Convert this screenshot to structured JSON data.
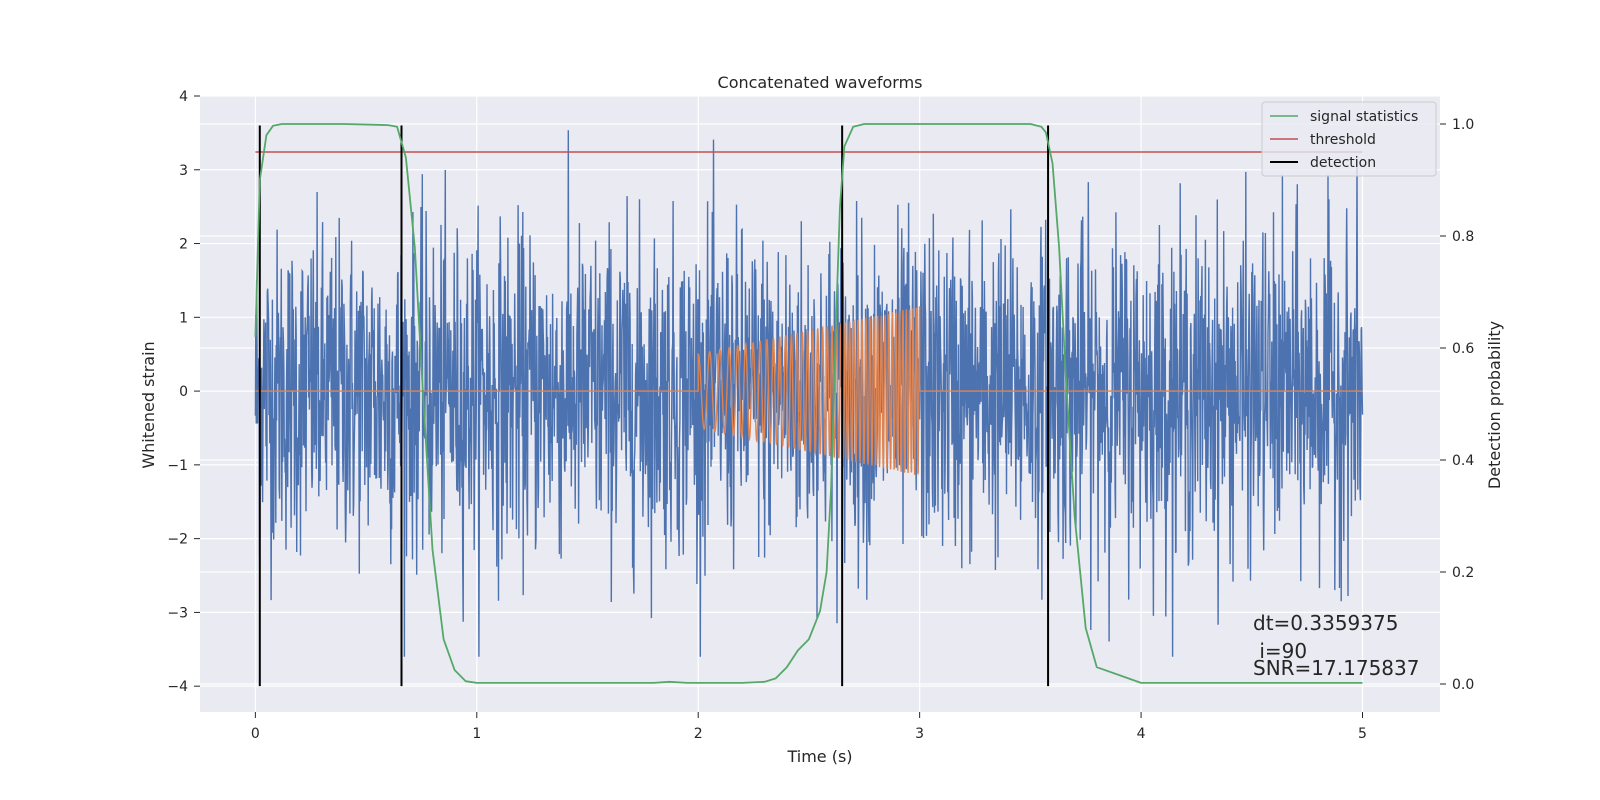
{
  "chart_data": {
    "type": "line",
    "title": "Concatenated waveforms",
    "xlabel": "Time (s)",
    "ylabel": "Whitened strain",
    "ylabel_right": "Detection probability",
    "xlim": [
      -0.25,
      5.35
    ],
    "ylim": [
      -4.35,
      4.0
    ],
    "ylim_right": [
      -0.05,
      1.05
    ],
    "x_ticks": [
      0,
      1,
      2,
      3,
      4,
      5
    ],
    "y_ticks": [
      -4,
      -3,
      -2,
      -1,
      0,
      1,
      2,
      3,
      4
    ],
    "y_ticks_right": [
      0.0,
      0.2,
      0.4,
      0.6,
      0.8,
      1.0
    ],
    "x_tick_labels": [
      "0",
      "1",
      "2",
      "3",
      "4",
      "5"
    ],
    "y_tick_labels": [
      "−4",
      "−3",
      "−2",
      "−1",
      "0",
      "1",
      "2",
      "3",
      "4"
    ],
    "y_tick_labels_right": [
      "0.0",
      "0.2",
      "0.4",
      "0.6",
      "0.8",
      "1.0"
    ],
    "grid": true,
    "legend_position": "top-right",
    "colors": {
      "strain": "#4c72b0",
      "injected_signal": "#dd8452",
      "signal_statistics": "#55a868",
      "threshold": "#c44e52",
      "detection": "#000000",
      "plot_background": "#eaeaf2",
      "grid": "#ffffff"
    },
    "series": [
      {
        "name": "signal statistics",
        "axis": "right",
        "x": [
          0.0,
          0.02,
          0.05,
          0.08,
          0.12,
          0.2,
          0.4,
          0.6,
          0.64,
          0.68,
          0.72,
          0.76,
          0.8,
          0.85,
          0.9,
          0.95,
          1.0,
          1.5,
          1.8,
          1.87,
          1.95,
          2.2,
          2.3,
          2.35,
          2.4,
          2.45,
          2.5,
          2.55,
          2.58,
          2.6,
          2.62,
          2.64,
          2.66,
          2.7,
          2.75,
          3.0,
          3.5,
          3.55,
          3.57,
          3.6,
          3.63,
          3.66,
          3.7,
          3.75,
          3.8,
          4.0,
          4.5,
          5.0
        ],
        "y": [
          0.62,
          0.9,
          0.98,
          0.997,
          1.0,
          1.0,
          1.0,
          0.998,
          0.995,
          0.94,
          0.78,
          0.5,
          0.24,
          0.08,
          0.025,
          0.005,
          0.002,
          0.002,
          0.002,
          0.004,
          0.002,
          0.002,
          0.004,
          0.01,
          0.03,
          0.06,
          0.08,
          0.13,
          0.2,
          0.35,
          0.62,
          0.85,
          0.96,
          0.995,
          1.0,
          1.0,
          1.0,
          0.995,
          0.985,
          0.93,
          0.78,
          0.55,
          0.3,
          0.1,
          0.03,
          0.002,
          0.002,
          0.002
        ]
      },
      {
        "name": "threshold",
        "axis": "right",
        "x": [
          0.0,
          5.0
        ],
        "y": [
          0.95,
          0.95
        ]
      },
      {
        "name": "detection",
        "axis": "left",
        "type": "vlines",
        "x": [
          0.02,
          0.66,
          2.65,
          3.58
        ],
        "y_range": [
          -4.0,
          3.6
        ]
      },
      {
        "name": "",
        "axis": "left",
        "description_type": "noise",
        "x_range": [
          0.0,
          5.0
        ],
        "typical_amplitude": 2.4,
        "max_amplitude": 3.6
      },
      {
        "name": "",
        "axis": "left",
        "description_type": "chirp",
        "x": [
          0.0,
          2.0,
          2.0,
          3.0,
          3.0,
          5.0
        ],
        "envelope": [
          0.0,
          0.0,
          0.5,
          1.15,
          0.0,
          0.0
        ]
      }
    ],
    "annotations": [
      "dt=0.3359375",
      " i=90",
      "SNR=17.175837"
    ]
  }
}
